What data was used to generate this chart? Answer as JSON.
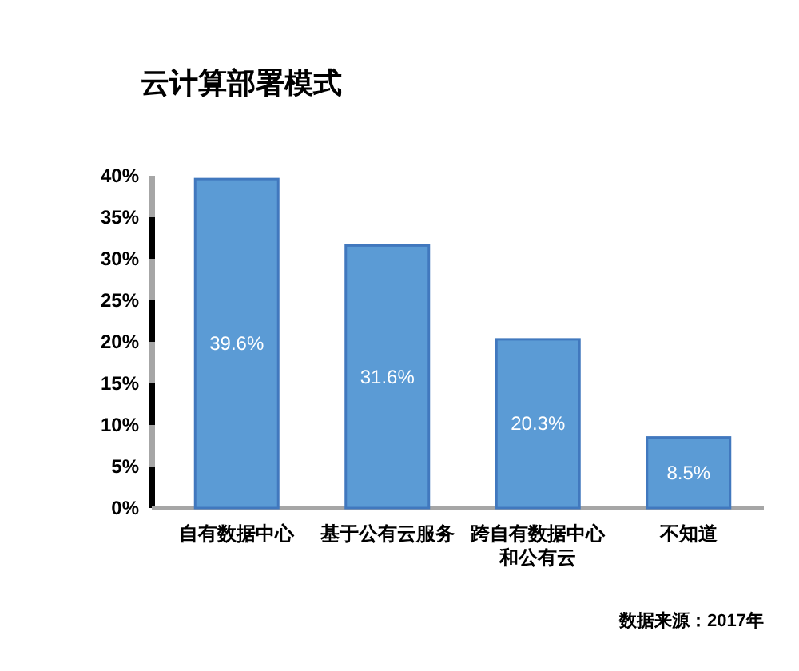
{
  "chart_data": {
    "type": "bar",
    "title": "云计算部署模式",
    "categories": [
      "自有数据中心",
      "基于公有云服务",
      "跨自有数据中心和公有云",
      "不知道"
    ],
    "values": [
      39.6,
      31.6,
      20.3,
      8.5
    ],
    "color": "#5b9bd5",
    "value_labels": [
      "39.6%",
      "31.6%",
      "20.3%",
      "8.5%"
    ],
    "ylim": [
      0,
      40
    ],
    "yticks": [
      {
        "value": 0,
        "label": "0%"
      },
      {
        "value": 5,
        "label": "5%"
      },
      {
        "value": 10,
        "label": "10%"
      },
      {
        "value": 15,
        "label": "15%"
      },
      {
        "value": 20,
        "label": "20%"
      },
      {
        "value": 25,
        "label": "25%"
      },
      {
        "value": 30,
        "label": "30%"
      },
      {
        "value": 35,
        "label": "35%"
      },
      {
        "value": 40,
        "label": "40%"
      }
    ],
    "annotations": [
      "数据来源：2017年"
    ]
  }
}
